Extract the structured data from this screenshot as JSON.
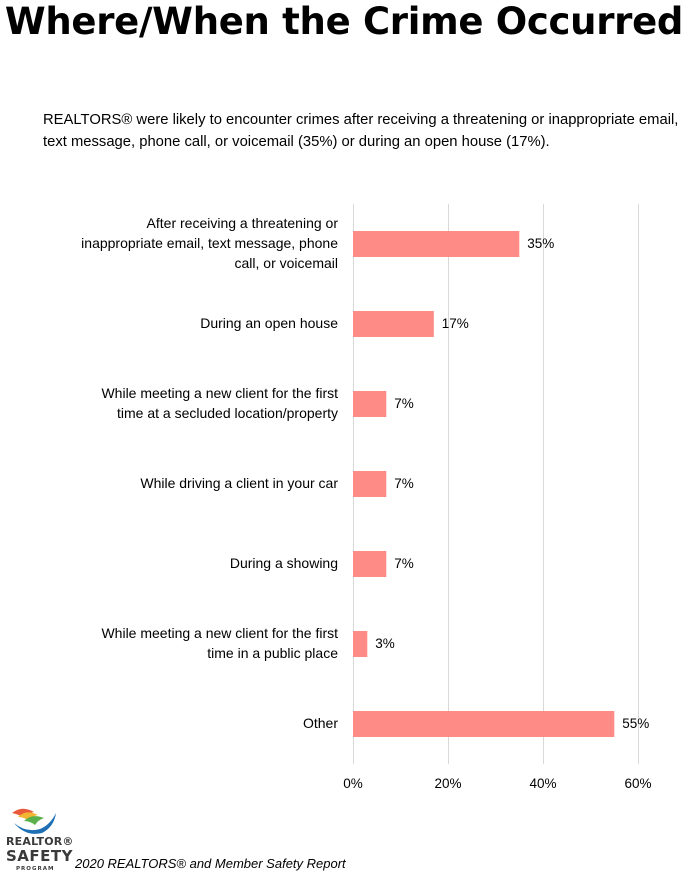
{
  "header": {
    "title": "Where/When the Crime Occurred",
    "subtitle": "REALTORS® were likely to encounter crimes after receiving a threatening or inappropriate email, text message, phone call, or voicemail (35%) or during an open house (17%)."
  },
  "chart_data": {
    "type": "bar",
    "orientation": "horizontal",
    "categories": [
      "After receiving a threatening or inappropriate email, text message, phone call, or voicemail",
      "During an open house",
      "While meeting a new client for the first time at a secluded location/property",
      "While driving a client in your car",
      "During a showing",
      "While meeting a new client for the first time in a public place",
      "Other"
    ],
    "category_lines": [
      [
        "After receiving a threatening or",
        "inappropriate email, text message, phone",
        "call, or voicemail"
      ],
      [
        "During an open house"
      ],
      [
        "While meeting a new client for the first",
        "time at a secluded location/property"
      ],
      [
        "While driving a client in your car"
      ],
      [
        "During a showing"
      ],
      [
        "While meeting a new client for the first",
        "time in a public place"
      ],
      [
        "Other"
      ]
    ],
    "values": [
      35,
      17,
      7,
      7,
      7,
      3,
      55
    ],
    "value_labels": [
      "35%",
      "17%",
      "7%",
      "7%",
      "7%",
      "3%",
      "55%"
    ],
    "xlim": [
      0,
      60
    ],
    "xticks": [
      0,
      20,
      40,
      60
    ],
    "xtick_labels": [
      "0%",
      "20%",
      "40%",
      "60%"
    ],
    "grid": true,
    "legend": "none",
    "colors": {
      "bar": "#ff8b87",
      "grid": "#d9d9d9"
    }
  },
  "logo": {
    "line1": "REALTOR®",
    "line2": "SAFETY",
    "line3": "PROGRAM"
  },
  "footer": {
    "source": "2020 REALTORS® and Member Safety Report"
  }
}
